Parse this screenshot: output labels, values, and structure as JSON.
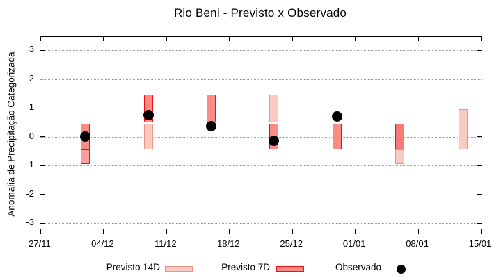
{
  "title": "Rio Beni - Previsto x Observado",
  "y_axis": {
    "label": "Anomalia de Precipitação Categorizada",
    "tick_labels": [
      "3",
      "2",
      "1",
      "0",
      "-1",
      "-2",
      "-3"
    ],
    "tick_values": [
      3,
      2,
      1,
      0,
      -1,
      -2,
      -3
    ]
  },
  "x_axis": {
    "tick_labels": [
      "27/11",
      "04/12",
      "11/12",
      "18/12",
      "25/12",
      "01/01",
      "08/01",
      "15/01"
    ]
  },
  "legend": {
    "items": [
      {
        "label": "Previsto 14D",
        "style": "p14"
      },
      {
        "label": "Previsto 7D",
        "style": "p7"
      },
      {
        "label": "Observado",
        "style": "observed"
      }
    ]
  },
  "colors": {
    "p14": {
      "fill": "#f9c9c4",
      "border": "#ef9283"
    },
    "p7": {
      "fill": "#fd8b85",
      "border": "#ee1111"
    },
    "p7_dark": {
      "fill": "#f87b75",
      "border": "#ee1111"
    },
    "p7_light": {
      "fill": "#fb9e9b",
      "border": "#ee1111"
    },
    "observed": "#000000",
    "grid": "#9e9e9e",
    "axis": "#000000"
  },
  "chart_data": {
    "type": "rangebar+scatter",
    "title": "Rio Beni - Previsto x Observado",
    "xlabel": "",
    "ylabel": "Anomalia de Precipitação Categorizada",
    "ylim": [
      -3.4,
      3.45
    ],
    "grid": "horizontal-dotted",
    "legend_position": "bottom",
    "x_start_label": "27/11",
    "x_days_from_start": [
      5,
      12,
      19,
      26,
      33,
      40,
      47
    ],
    "x_dates_estimated": [
      "02/12",
      "09/12",
      "16/12",
      "23/12",
      "30/12",
      "06/01",
      "13/01"
    ],
    "series": [
      {
        "name": "Previsto 14D",
        "type": "rangebar",
        "ranges": [
          [
            -0.95,
            -0.45
          ],
          [
            -0.45,
            0.45
          ],
          null,
          [
            0.5,
            1.45
          ],
          null,
          [
            -0.95,
            -0.45
          ],
          [
            -0.45,
            0.95
          ]
        ]
      },
      {
        "name": "Previsto 7D",
        "type": "rangebar",
        "ranges": [
          [
            -0.45,
            0.45
          ],
          [
            0.5,
            1.45
          ],
          [
            0.5,
            1.45
          ],
          [
            -0.45,
            0.45
          ],
          [
            -0.45,
            0.45
          ],
          [
            -0.45,
            0.45
          ],
          null
        ]
      },
      {
        "name": "Observado",
        "type": "scatter",
        "values": [
          0,
          0.75,
          0.35,
          -0.15,
          0.7,
          null,
          null
        ]
      }
    ],
    "groups": [
      {
        "segments": [
          {
            "style": "p7",
            "range": [
              -0.45,
              0.45
            ]
          },
          {
            "style": "p7_light",
            "range": [
              -0.95,
              -0.45
            ]
          }
        ],
        "observed": 0
      },
      {
        "segments": [
          {
            "style": "p7",
            "range": [
              0.5,
              1.45
            ]
          },
          {
            "style": "p14",
            "range": [
              -0.45,
              0.45
            ]
          }
        ],
        "observed": 0.75
      },
      {
        "segments": [
          {
            "style": "p7",
            "range": [
              0.5,
              1.45
            ]
          }
        ],
        "observed": 0.35
      },
      {
        "segments": [
          {
            "style": "p14",
            "range": [
              0.5,
              1.45
            ]
          },
          {
            "style": "p7",
            "range": [
              -0.45,
              0.45
            ]
          }
        ],
        "observed": -0.15
      },
      {
        "segments": [
          {
            "style": "p7",
            "range": [
              -0.45,
              0.45
            ]
          }
        ],
        "observed": 0.7
      },
      {
        "segments": [
          {
            "style": "p14",
            "range": [
              -0.95,
              -0.45
            ]
          },
          {
            "style": "p7_dark",
            "range": [
              -0.45,
              0.45
            ]
          }
        ],
        "observed": null
      },
      {
        "segments": [
          {
            "style": "p14",
            "range": [
              -0.45,
              0.95
            ]
          }
        ],
        "observed": null
      }
    ]
  }
}
